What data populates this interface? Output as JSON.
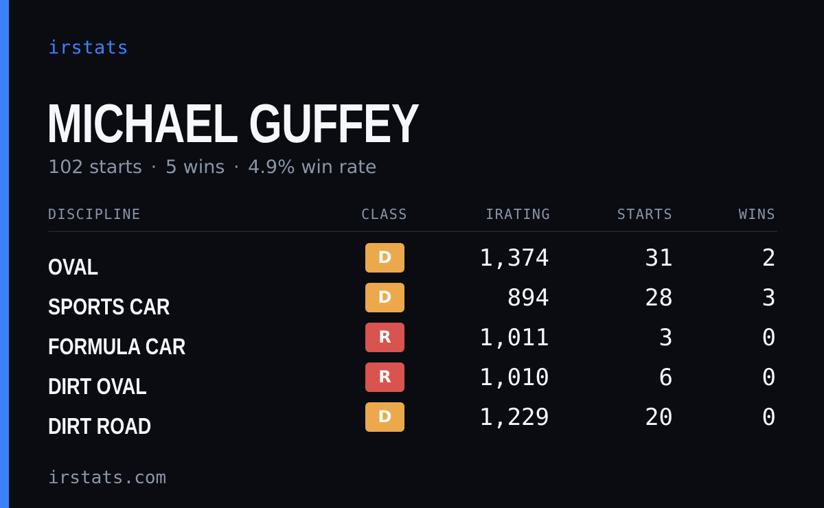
{
  "brand": "irstats",
  "driver": {
    "name": "MICHAEL GUFFEY",
    "starts_text": "102 starts",
    "wins_text": "5 wins",
    "win_rate_text": "4.9% win rate",
    "separator": "·"
  },
  "table": {
    "headers": {
      "discipline": "DISCIPLINE",
      "class": "CLASS",
      "irating": "IRATING",
      "starts": "STARTS",
      "wins": "WINS"
    },
    "rows": [
      {
        "discipline": "OVAL",
        "class": "D",
        "irating": "1,374",
        "starts": "31",
        "wins": "2"
      },
      {
        "discipline": "SPORTS CAR",
        "class": "D",
        "irating": "894",
        "starts": "28",
        "wins": "3"
      },
      {
        "discipline": "FORMULA CAR",
        "class": "R",
        "irating": "1,011",
        "starts": "3",
        "wins": "0"
      },
      {
        "discipline": "DIRT OVAL",
        "class": "R",
        "irating": "1,010",
        "starts": "6",
        "wins": "0"
      },
      {
        "discipline": "DIRT ROAD",
        "class": "D",
        "irating": "1,229",
        "starts": "20",
        "wins": "0"
      }
    ]
  },
  "footer": "irstats.com",
  "colors": {
    "background": "#0a0c12",
    "accent": "#3b82f6",
    "class_d": "#eba94b",
    "class_r": "#d9534f",
    "muted_text": "#8b95a7"
  }
}
